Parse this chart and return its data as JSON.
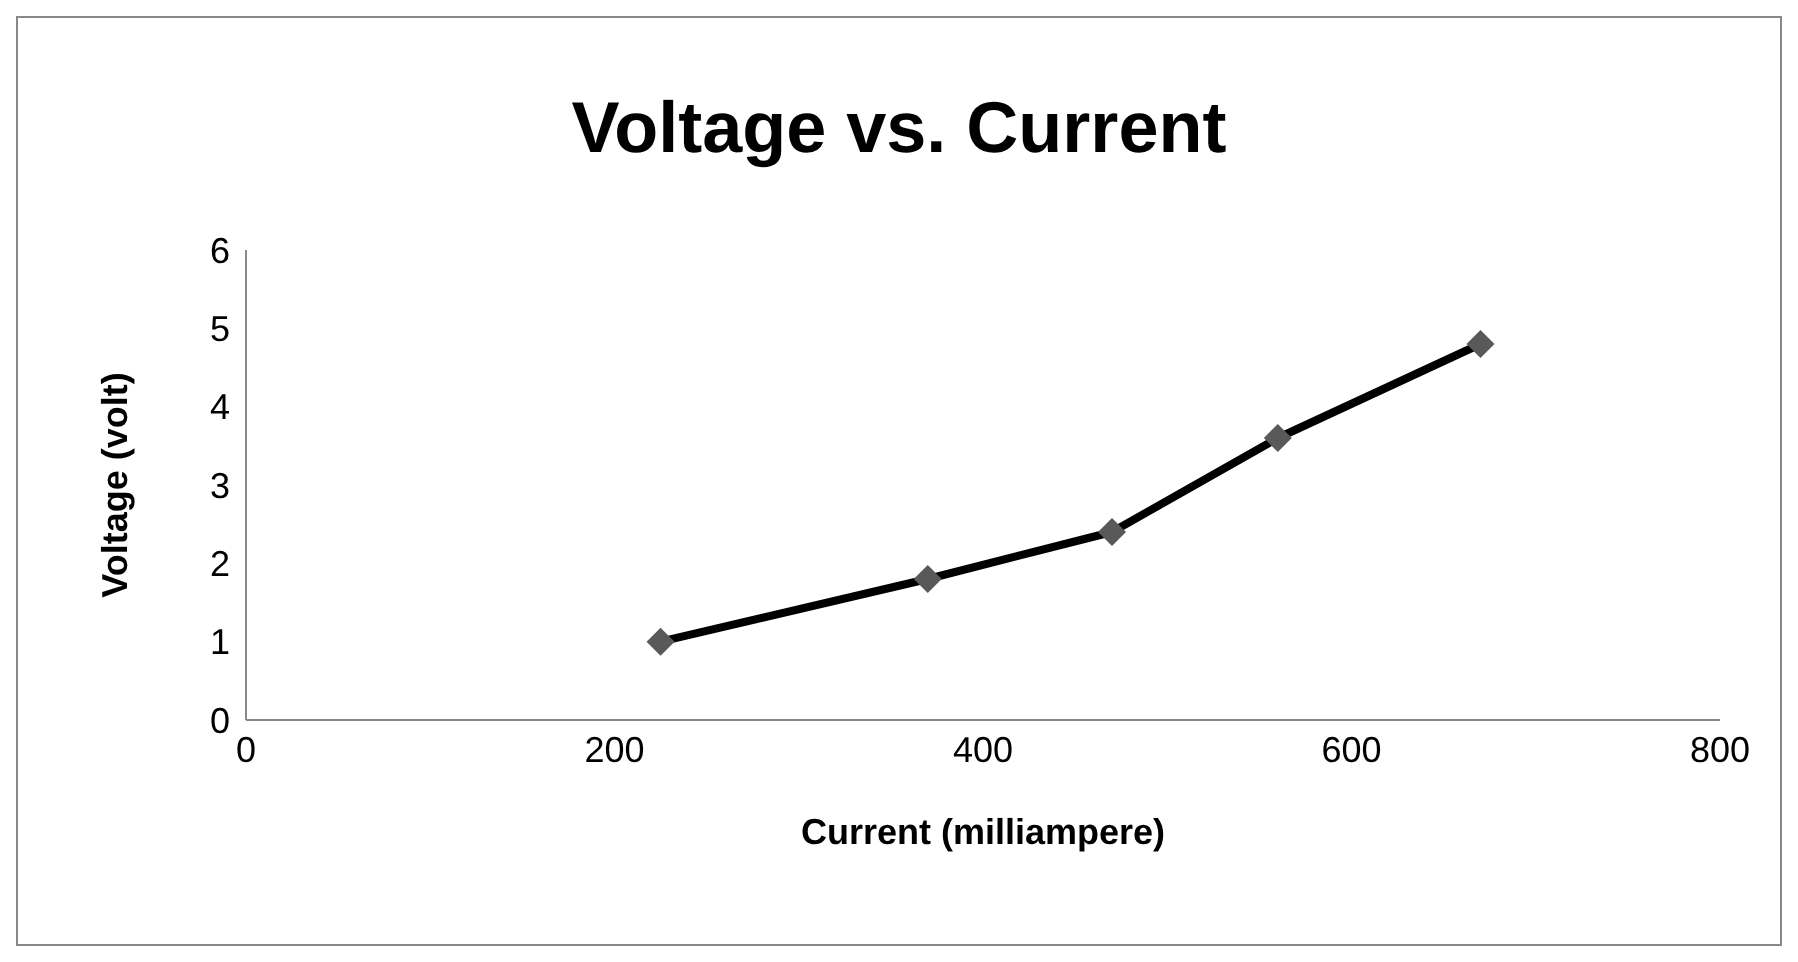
{
  "chart_data": {
    "type": "line",
    "title": "Voltage vs. Current",
    "xlabel": "Current (milliampere)",
    "ylabel": "Voltage (volt)",
    "x": [
      225,
      370,
      470,
      560,
      670
    ],
    "series": [
      {
        "color": "#000000",
        "values": [
          1,
          1.8,
          2.4,
          3.6,
          4.8
        ]
      }
    ],
    "xlim": [
      0,
      800
    ],
    "xticks": [
      0,
      200,
      400,
      600,
      800
    ],
    "ylim": [
      0,
      6
    ],
    "yticks": [
      0,
      1,
      2,
      3,
      4,
      5,
      6
    ],
    "grid": false,
    "legend": false,
    "marker": "diamond",
    "line_style": "solid"
  }
}
